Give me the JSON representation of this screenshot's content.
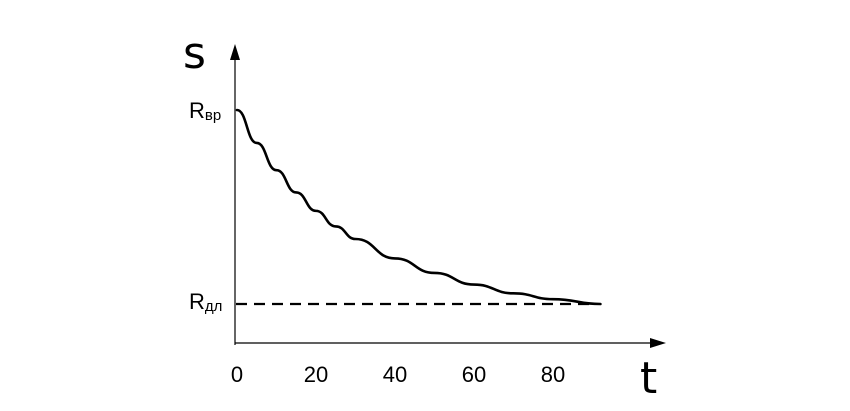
{
  "chart_data": {
    "type": "line",
    "title": "",
    "xlabel": "t",
    "ylabel": "s",
    "x_ticks": [
      0,
      20,
      40,
      60,
      80
    ],
    "xlim": [
      0,
      105
    ],
    "grid": false,
    "legend": "none",
    "levels": {
      "upper": {
        "main": "R",
        "sub": "вр"
      },
      "lower": {
        "main": "R",
        "sub": "дл"
      }
    },
    "series": [
      {
        "x": [
          0,
          5,
          10,
          15,
          20,
          25,
          30,
          40,
          50,
          60,
          70,
          80,
          92
        ],
        "y": [
          1.0,
          0.83,
          0.69,
          0.575,
          0.48,
          0.4,
          0.335,
          0.235,
          0.16,
          0.1,
          0.055,
          0.025,
          0.0
        ]
      }
    ],
    "y_scale": "relative (0 = Rдл, 1 = Rвр)"
  }
}
